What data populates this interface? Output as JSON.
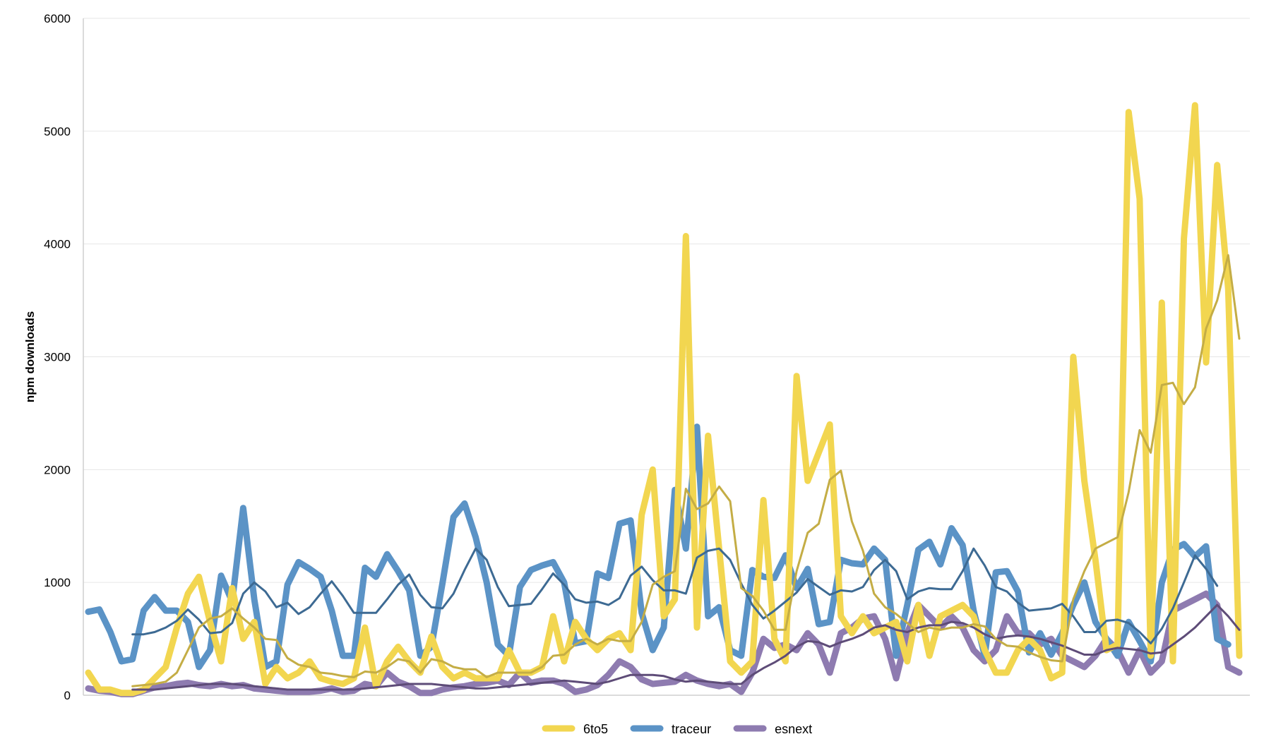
{
  "chart_data": {
    "type": "line",
    "title": "",
    "xlabel": "",
    "ylabel": "npm downloads",
    "ylim": [
      0,
      6000
    ],
    "yticks": [
      "0",
      "1000",
      "2000",
      "3000",
      "4000",
      "5000",
      "6000"
    ],
    "grid": true,
    "legend_position": "bottom",
    "series": [
      {
        "name": "6to5",
        "color": "#f2d650",
        "values": [
          200,
          50,
          50,
          20,
          20,
          50,
          150,
          250,
          600,
          900,
          1050,
          650,
          300,
          950,
          500,
          650,
          100,
          250,
          150,
          200,
          300,
          150,
          120,
          100,
          150,
          600,
          80,
          300,
          430,
          300,
          200,
          520,
          250,
          150,
          200,
          150,
          150,
          150,
          400,
          200,
          200,
          250,
          700,
          300,
          650,
          500,
          400,
          500,
          550,
          400,
          1600,
          2000,
          700,
          850,
          4070,
          600,
          2300,
          1300,
          300,
          200,
          300,
          1730,
          500,
          300,
          2830,
          1900,
          2150,
          2400,
          700,
          550,
          700,
          550,
          600,
          650,
          300,
          800,
          350,
          700,
          750,
          800,
          700,
          400,
          200,
          200,
          400,
          500,
          400,
          150,
          200,
          3000,
          1900,
          1200,
          400,
          450,
          5170,
          4400,
          350,
          3480,
          300,
          4050,
          5230,
          2950,
          4700,
          3600,
          350
        ],
        "trend": [
          null,
          null,
          null,
          null,
          80,
          90,
          100,
          120,
          200,
          400,
          600,
          680,
          700,
          770,
          680,
          600,
          500,
          490,
          330,
          270,
          250,
          200,
          190,
          170,
          160,
          210,
          200,
          250,
          320,
          300,
          200,
          320,
          300,
          250,
          230,
          230,
          160,
          200,
          200,
          200,
          200,
          250,
          350,
          360,
          450,
          500,
          450,
          500,
          480,
          480,
          650,
          980,
          1050,
          1100,
          1830,
          1650,
          1700,
          1850,
          1720,
          950,
          880,
          750,
          580,
          580,
          1100,
          1440,
          1520,
          1910,
          1990,
          1540,
          1280,
          900,
          780,
          720,
          640,
          560,
          600,
          580,
          600,
          600,
          630,
          610,
          500,
          440,
          430,
          380,
          340,
          310,
          300,
          850,
          1100,
          1300,
          1350,
          1400,
          1800,
          2350,
          2150,
          2750,
          2770,
          2580,
          2730,
          3250,
          3500,
          3900,
          3160
        ]
      },
      {
        "name": "traceur",
        "color": "#5b93c6",
        "values": [
          740,
          760,
          560,
          300,
          320,
          750,
          870,
          750,
          750,
          650,
          250,
          400,
          1060,
          830,
          1660,
          850,
          250,
          300,
          980,
          1180,
          1120,
          1050,
          750,
          350,
          350,
          1130,
          1050,
          1250,
          1100,
          930,
          350,
          430,
          990,
          1580,
          1700,
          1400,
          1000,
          450,
          350,
          960,
          1110,
          1150,
          1180,
          1000,
          460,
          480,
          1080,
          1040,
          1520,
          1550,
          730,
          400,
          600,
          1820,
          1300,
          2380,
          700,
          780,
          400,
          350,
          1110,
          1050,
          1040,
          1240,
          950,
          1120,
          630,
          650,
          1200,
          1170,
          1160,
          1300,
          1200,
          350,
          800,
          1290,
          1360,
          1160,
          1480,
          1330,
          750,
          350,
          1090,
          1100,
          920,
          380,
          550,
          360,
          550,
          800,
          1000,
          650,
          500,
          350,
          650,
          480,
          300,
          1000,
          1290,
          1340,
          1230,
          1320,
          500,
          450
        ],
        "trend": [
          null,
          null,
          null,
          null,
          540,
          540,
          560,
          600,
          660,
          760,
          670,
          550,
          560,
          640,
          900,
          1000,
          920,
          780,
          820,
          720,
          780,
          900,
          1010,
          880,
          730,
          730,
          730,
          850,
          980,
          1070,
          890,
          780,
          770,
          900,
          1110,
          1300,
          1200,
          960,
          790,
          800,
          810,
          940,
          1080,
          980,
          850,
          820,
          830,
          800,
          860,
          1060,
          1140,
          1020,
          930,
          930,
          900,
          1220,
          1280,
          1300,
          1200,
          990,
          800,
          680,
          750,
          830,
          910,
          1030,
          960,
          890,
          930,
          920,
          960,
          1110,
          1200,
          1100,
          850,
          920,
          950,
          940,
          940,
          1100,
          1300,
          1150,
          960,
          920,
          820,
          750,
          760,
          770,
          810,
          700,
          560,
          560,
          660,
          670,
          640,
          560,
          460,
          590,
          770,
          1000,
          1240,
          1120,
          970
        ]
      },
      {
        "name": "esnext",
        "color": "#8e7bb0",
        "values": [
          60,
          40,
          30,
          10,
          10,
          40,
          70,
          80,
          100,
          110,
          90,
          80,
          100,
          80,
          90,
          60,
          50,
          40,
          30,
          30,
          30,
          40,
          60,
          30,
          40,
          100,
          80,
          200,
          120,
          80,
          20,
          20,
          50,
          70,
          80,
          100,
          110,
          130,
          90,
          200,
          110,
          130,
          130,
          100,
          30,
          50,
          90,
          180,
          300,
          250,
          140,
          100,
          110,
          120,
          180,
          130,
          100,
          80,
          100,
          30,
          200,
          500,
          420,
          450,
          400,
          550,
          450,
          200,
          550,
          600,
          680,
          700,
          500,
          150,
          550,
          800,
          700,
          600,
          700,
          600,
          400,
          300,
          400,
          700,
          550,
          550,
          450,
          500,
          350,
          300,
          250,
          350,
          500,
          400,
          200,
          400,
          200,
          300,
          750,
          800,
          850,
          900,
          800,
          250,
          200
        ],
        "trend": [
          null,
          null,
          null,
          null,
          50,
          50,
          50,
          60,
          70,
          80,
          90,
          100,
          100,
          100,
          90,
          80,
          70,
          60,
          50,
          50,
          50,
          50,
          50,
          50,
          50,
          60,
          70,
          80,
          90,
          100,
          100,
          100,
          90,
          80,
          70,
          60,
          60,
          70,
          80,
          90,
          100,
          110,
          120,
          130,
          120,
          110,
          100,
          120,
          150,
          180,
          180,
          180,
          170,
          140,
          120,
          130,
          120,
          110,
          100,
          100,
          180,
          240,
          290,
          350,
          430,
          480,
          470,
          430,
          470,
          500,
          540,
          600,
          620,
          580,
          560,
          600,
          620,
          620,
          650,
          640,
          600,
          540,
          500,
          520,
          530,
          520,
          500,
          470,
          440,
          400,
          360,
          360,
          400,
          420,
          410,
          400,
          370,
          380,
          450,
          520,
          600,
          700,
          800,
          700,
          580
        ]
      }
    ]
  }
}
